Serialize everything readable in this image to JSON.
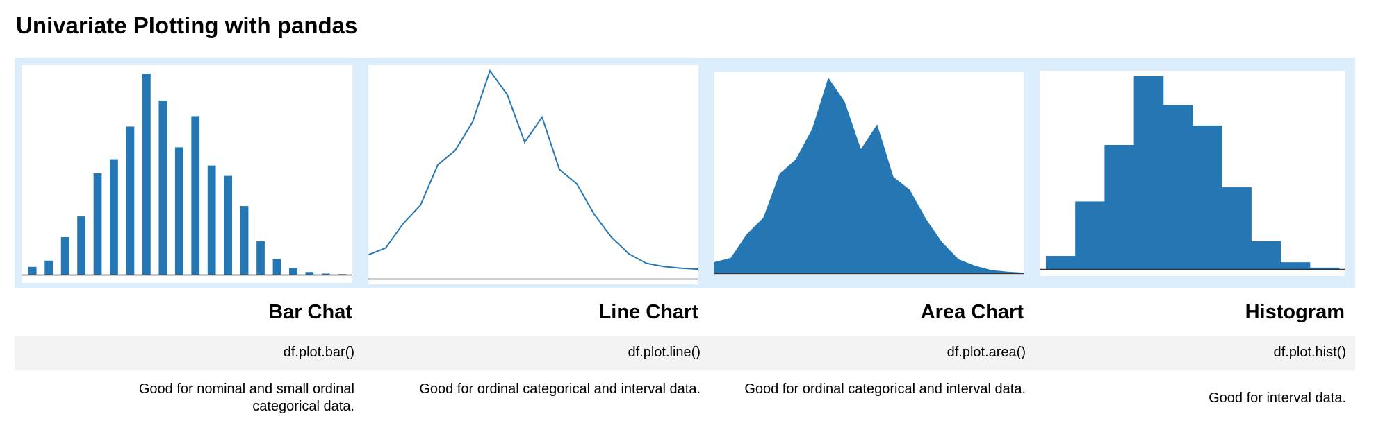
{
  "page": {
    "title": "Univariate Plotting with pandas"
  },
  "panels": [
    {
      "caption": "Bar Chat",
      "code": "df.plot.bar()",
      "description": "Good for nominal and small ordinal categorical data."
    },
    {
      "caption": "Line Chart",
      "code": "df.plot.line()",
      "description": "Good for ordinal categorical and interval data."
    },
    {
      "caption": "Area Chart",
      "code": "df.plot.area()",
      "description": "Good for ordinal categorical and interval data."
    },
    {
      "caption": "Histogram",
      "code": "df.plot.hist()",
      "description": "Good for interval data."
    }
  ],
  "chart_data": [
    {
      "type": "bar",
      "values": [
        1.5,
        2.7,
        7.2,
        11.2,
        19.5,
        22.2,
        28.5,
        38.7,
        33.5,
        24.5,
        30.5,
        21.0,
        19.0,
        13.2,
        6.4,
        3.0,
        1.3,
        0.5,
        0.2,
        0.1
      ],
      "color": "#2577b4"
    },
    {
      "type": "line",
      "values": [
        8.2,
        10.5,
        18.8,
        25.1,
        38.9,
        43.8,
        53.5,
        71.0,
        62.8,
        46.6,
        55.2,
        37.3,
        32.4,
        22.0,
        14.1,
        8.5,
        5.3,
        4.2,
        3.6,
        3.3
      ],
      "color": "#2577b4"
    },
    {
      "type": "area",
      "values": [
        3.5,
        4.8,
        12.3,
        17.4,
        31.2,
        35.7,
        45.2,
        61.3,
        53.8,
        38.9,
        46.7,
        30.2,
        26.2,
        17.0,
        9.6,
        4.4,
        2.4,
        1.0,
        0.5,
        0.2
      ],
      "color": "#2577b4"
    },
    {
      "type": "histogram",
      "values": [
        27,
        139,
        255,
        396,
        337,
        295,
        168,
        57,
        14,
        3
      ],
      "color": "#2577b4"
    }
  ]
}
